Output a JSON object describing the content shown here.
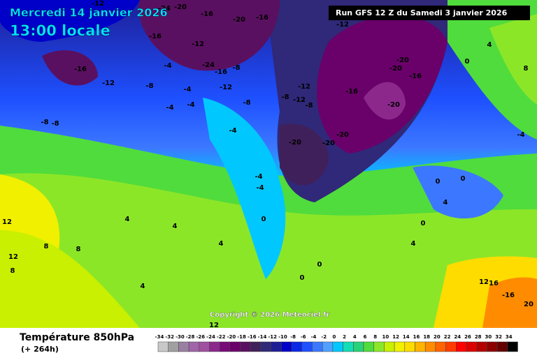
{
  "header": {
    "date": "Mercredi 14 janvier 2026",
    "time": "13:00 locale"
  },
  "run": "Run GFS 12 Z du Samedi 3 janvier 2026",
  "copyright": "Copyright © 2026 Meteociel.fr",
  "legend": {
    "title": "Température 850hPa",
    "lead_time": "(+ 264h)",
    "scale": {
      "values": [
        -34,
        -32,
        -30,
        -28,
        -26,
        -24,
        -22,
        -20,
        -18,
        -16,
        -14,
        -12,
        -10,
        -8,
        -6,
        -4,
        -2,
        0,
        2,
        4,
        6,
        8,
        10,
        12,
        14,
        16,
        18,
        20,
        22,
        24,
        26,
        28,
        30,
        32,
        34
      ],
      "colors": [
        "#c8c8c8",
        "#a0a0a0",
        "#9a80a0",
        "#a064a8",
        "#a050a0",
        "#8c288c",
        "#780a78",
        "#6a006a",
        "#5a1060",
        "#40205a",
        "#302878",
        "#1e1e96",
        "#0000c8",
        "#0a28e6",
        "#1e50ff",
        "#3c78ff",
        "#50a0ff",
        "#00c8ff",
        "#14dcb4",
        "#28d278",
        "#50dc3c",
        "#8ce628",
        "#c8f000",
        "#f0f000",
        "#ffdc00",
        "#ffb400",
        "#ff8c00",
        "#ff6400",
        "#ff3c00",
        "#ff0000",
        "#dc0000",
        "#b40000",
        "#8c0000",
        "#640000",
        "#000000"
      ]
    }
  },
  "map": {
    "contour_labels": [
      -12,
      -24,
      -20,
      -16,
      -20,
      -16,
      -12,
      -16,
      -12,
      -16,
      -24,
      -16,
      -8,
      -12,
      -8,
      -4,
      -4,
      -12,
      -8,
      -8,
      -12,
      -12,
      -8,
      -16,
      -20,
      -20,
      -16,
      -20,
      -20,
      -20,
      -20,
      -8,
      -8,
      -4,
      -4,
      -4,
      -4,
      -4,
      0,
      0,
      0,
      4,
      4,
      4,
      4,
      8,
      8,
      8,
      12,
      12,
      12,
      12,
      16,
      -16,
      20,
      0,
      4,
      4,
      -4,
      4,
      8,
      0,
      0,
      0
    ]
  }
}
